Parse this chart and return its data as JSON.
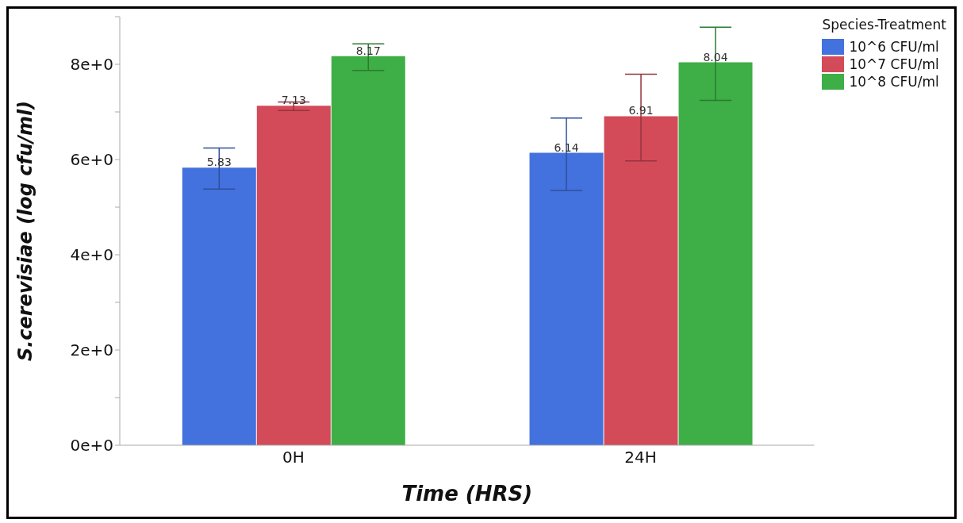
{
  "chart_data": {
    "type": "bar",
    "xlabel": "Time (HRS)",
    "ylabel": "S.cerevisiae (log cfu/ml)",
    "legend_title": "Species-Treatment",
    "categories": [
      "0H",
      "24H"
    ],
    "series": [
      {
        "name": "10^6 CFU/ml",
        "color": "#4371de",
        "values": [
          5.83,
          6.14
        ],
        "errors": [
          [
            5.38,
            6.24
          ],
          [
            5.35,
            6.87
          ]
        ]
      },
      {
        "name": "10^7 CFU/ml",
        "color": "#d34a59",
        "values": [
          7.13,
          6.91
        ],
        "errors": [
          [
            7.03,
            7.21
          ],
          [
            5.97,
            7.79
          ]
        ]
      },
      {
        "name": "10^8 CFU/ml",
        "color": "#3eae46",
        "values": [
          8.17,
          8.04
        ],
        "errors": [
          [
            7.87,
            8.43
          ],
          [
            7.24,
            8.78
          ]
        ]
      }
    ],
    "ylim": [
      0,
      9
    ],
    "yticks": [
      {
        "value": 0,
        "label": "0e+0"
      },
      {
        "value": 1,
        "label": null
      },
      {
        "value": 2,
        "label": "2e+0"
      },
      {
        "value": 3,
        "label": null
      },
      {
        "value": 4,
        "label": "4e+0"
      },
      {
        "value": 5,
        "label": null
      },
      {
        "value": 6,
        "label": "6e+0"
      },
      {
        "value": 7,
        "label": null
      },
      {
        "value": 8,
        "label": "8e+0"
      },
      {
        "value": 9,
        "label": null
      }
    ],
    "data_labels": true,
    "grid": false,
    "legend": "top right"
  }
}
